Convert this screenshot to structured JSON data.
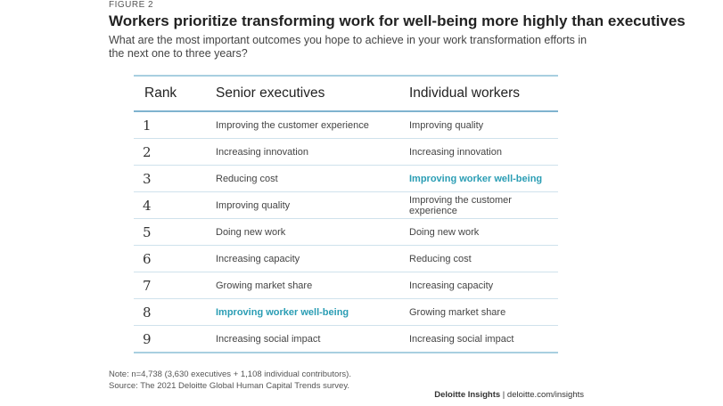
{
  "figure_label": "FIGURE 2",
  "title": "Workers prioritize transforming work for well-being more highly than executives",
  "subtitle": "What are the most important outcomes you hope to achieve in your work transformation efforts in the next one to three years?",
  "table": {
    "headers": {
      "rank": "Rank",
      "senior": "Senior executives",
      "individual": "Individual workers"
    },
    "rows": [
      {
        "rank": "1",
        "senior": "Improving the customer experience",
        "individual": "Improving quality"
      },
      {
        "rank": "2",
        "senior": "Increasing innovation",
        "individual": "Increasing innovation"
      },
      {
        "rank": "3",
        "senior": "Reducing cost",
        "individual": "Improving worker well-being"
      },
      {
        "rank": "4",
        "senior": "Improving quality",
        "individual": "Improving the customer experience"
      },
      {
        "rank": "5",
        "senior": "Doing new work",
        "individual": "Doing new work"
      },
      {
        "rank": "6",
        "senior": "Increasing capacity",
        "individual": "Reducing cost"
      },
      {
        "rank": "7",
        "senior": "Growing market share",
        "individual": "Increasing capacity"
      },
      {
        "rank": "8",
        "senior": "Improving worker well-being",
        "individual": "Growing market share"
      },
      {
        "rank": "9",
        "senior": "Increasing social impact",
        "individual": "Increasing social impact"
      }
    ]
  },
  "highlight_text": "Improving worker well-being",
  "highlight_color": "#2a9db4",
  "note": "Note: n=4,738 (3,630 executives + 1,108 individual contributors).",
  "source": "Source: The 2021 Deloitte Global Human Capital Trends survey.",
  "brand": {
    "name": "Deloitte Insights",
    "separator": " | ",
    "url": "deloitte.com/insights"
  }
}
